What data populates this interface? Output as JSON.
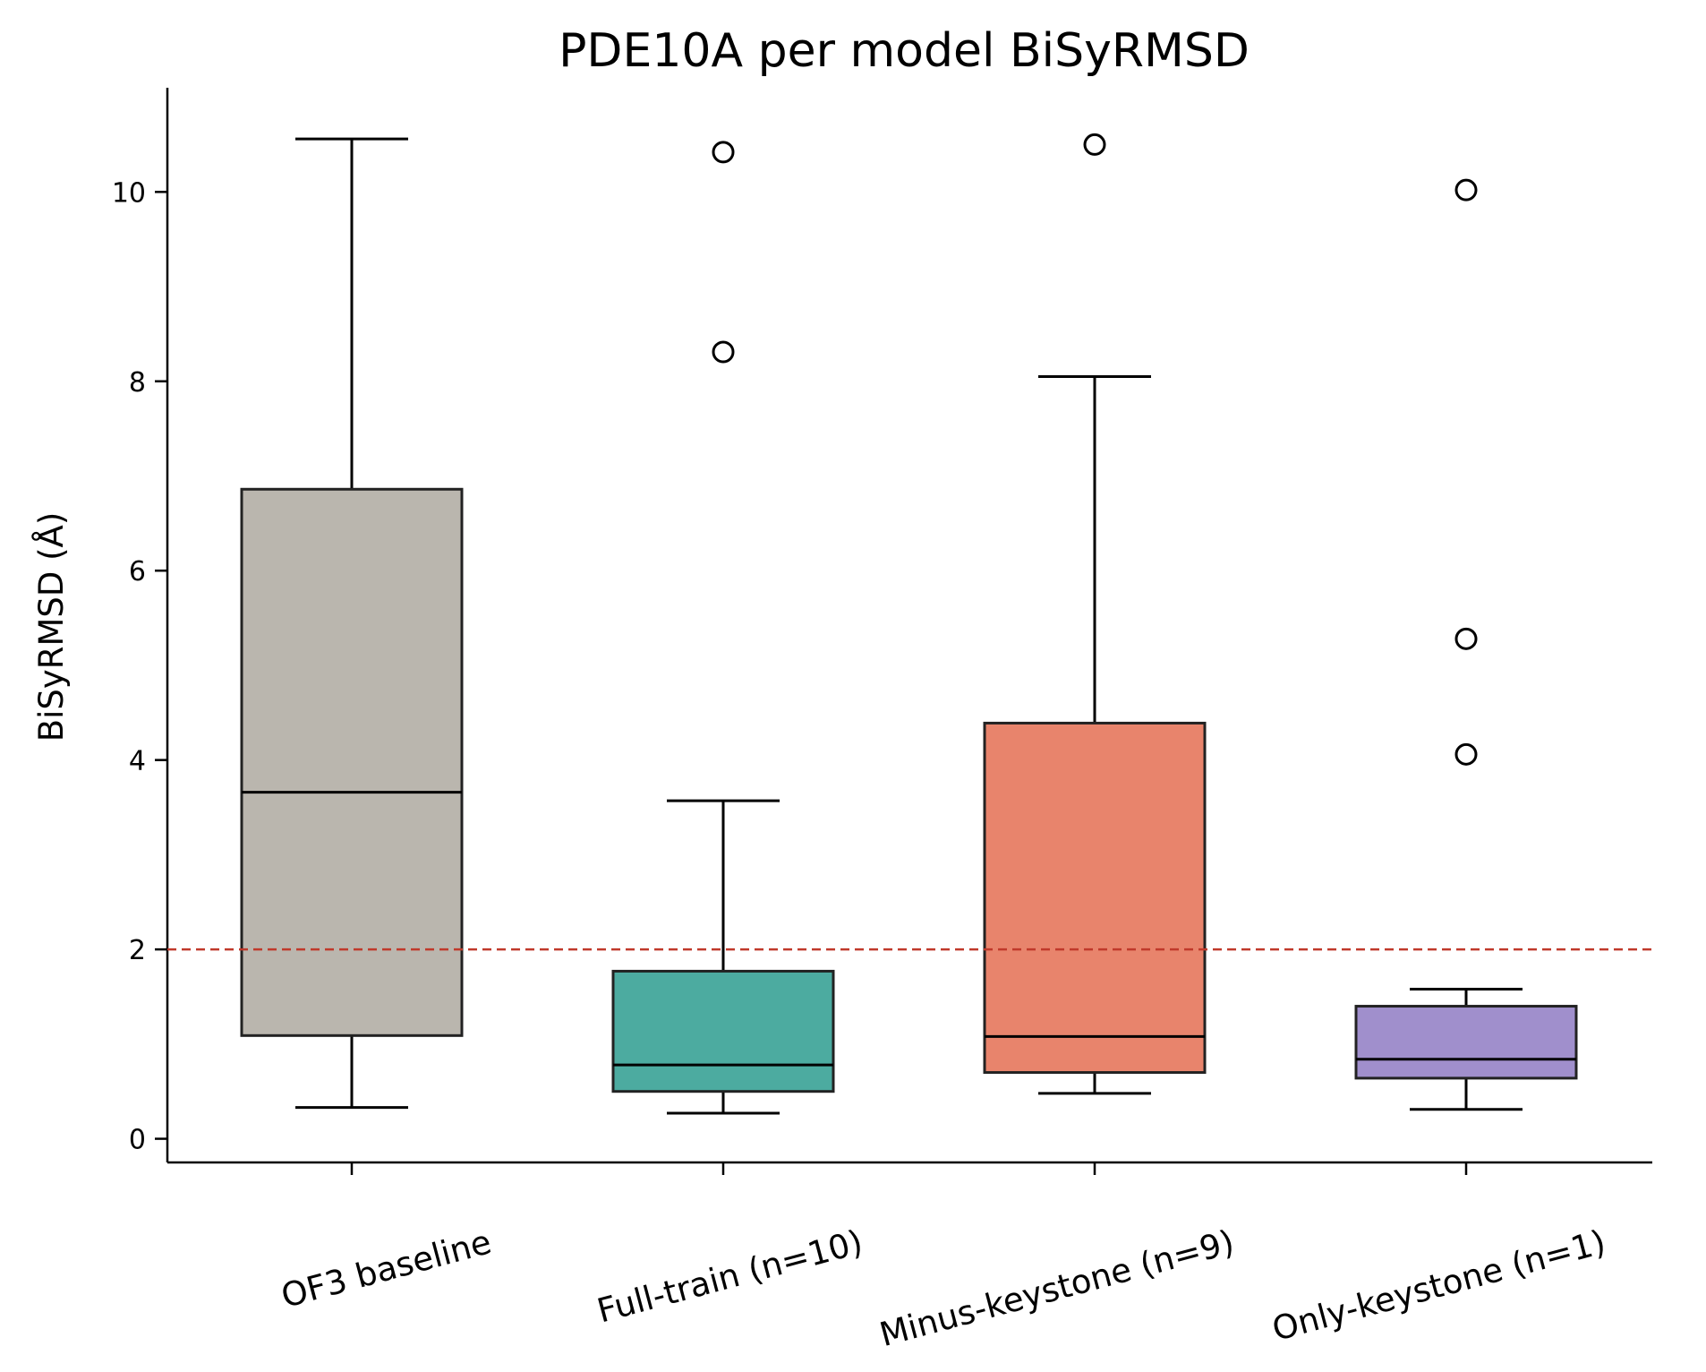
{
  "chart_data": {
    "type": "box",
    "title": "PDE10A per model BiSyRMSD",
    "xlabel": "",
    "ylabel": "BiSyRMSD (Å)",
    "ylim": [
      -0.25,
      11.1
    ],
    "yticks": [
      0,
      2,
      4,
      6,
      8,
      10
    ],
    "grid": false,
    "legend": "none",
    "threshold": {
      "value": 2.0,
      "color": "#c0392b",
      "style": "dashed"
    },
    "categories": [
      "OF3 baseline",
      "Full-train (n=10)",
      "Minus-keystone (n=9)",
      "Only-keystone (n=1)"
    ],
    "series": [
      {
        "whisker_low": 0.33,
        "q1": 1.09,
        "median": 3.66,
        "q3": 6.86,
        "whisker_high": 10.56,
        "outliers": [],
        "color": "#bab6ae"
      },
      {
        "whisker_low": 0.27,
        "q1": 0.5,
        "median": 0.78,
        "q3": 1.77,
        "whisker_high": 3.57,
        "outliers": [
          8.31,
          10.42
        ],
        "color": "#4caba0"
      },
      {
        "whisker_low": 0.48,
        "q1": 0.7,
        "median": 1.08,
        "q3": 4.39,
        "whisker_high": 8.05,
        "outliers": [
          10.5
        ],
        "color": "#e8846c"
      },
      {
        "whisker_low": 0.31,
        "q1": 0.64,
        "median": 0.84,
        "q3": 1.4,
        "whisker_high": 1.58,
        "outliers": [
          4.06,
          5.28,
          10.02
        ],
        "color": "#a08fcc"
      }
    ]
  }
}
